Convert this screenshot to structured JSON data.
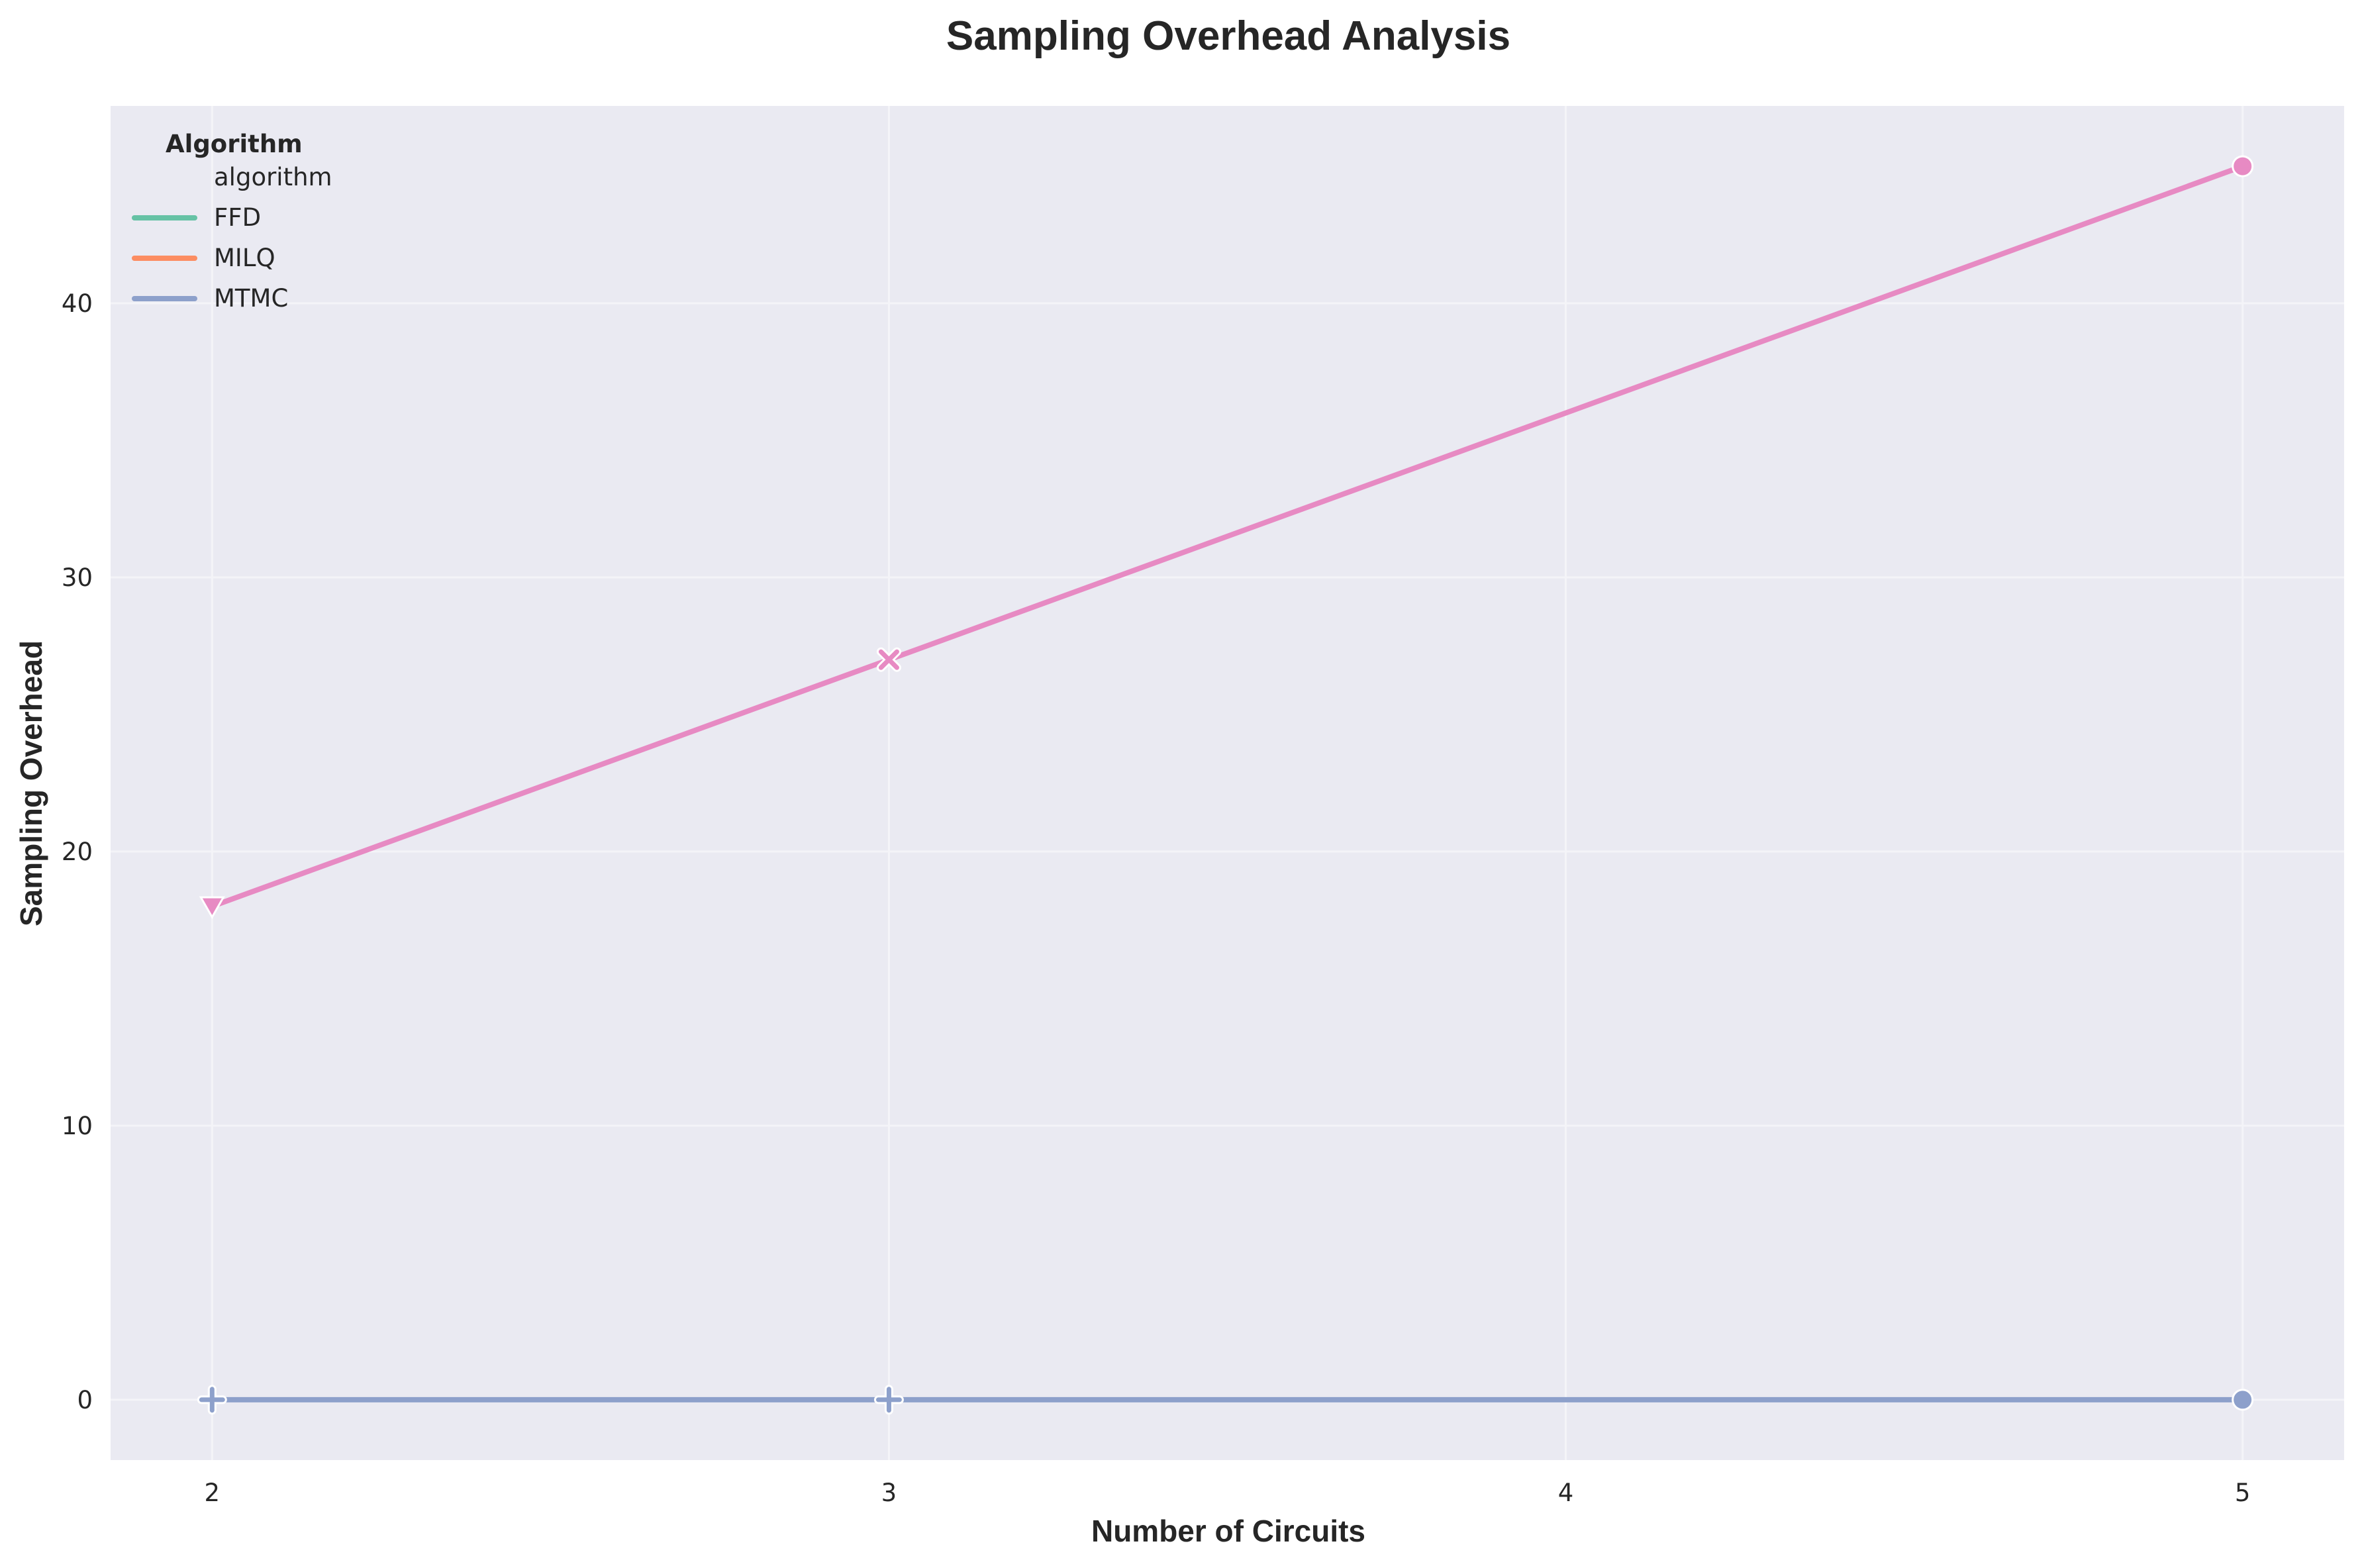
{
  "chart_data": {
    "type": "line",
    "title": "Sampling Overhead Analysis",
    "xlabel": "Number of Circuits",
    "ylabel": "Sampling Overhead",
    "x": [
      2,
      3,
      5
    ],
    "xticks": [
      "2",
      "3",
      "4",
      "5"
    ],
    "yticks": [
      "0",
      "10",
      "20",
      "30",
      "40"
    ],
    "xlim": [
      1.85,
      5.15
    ],
    "ylim": [
      -2.2,
      47.2
    ],
    "grid": true,
    "legend": {
      "title": "Algorithm",
      "placement": "top-left",
      "entries": [
        {
          "label": "algorithm",
          "color": ""
        },
        {
          "label": "FFD",
          "color": "#66c2a5"
        },
        {
          "label": "MILQ",
          "color": "#fc8d62"
        },
        {
          "label": "MTMC",
          "color": "#8da0cb"
        }
      ]
    },
    "series": [
      {
        "color": "#e78ac3",
        "values": [
          18,
          27,
          45
        ],
        "markers": [
          "triangle-down",
          "x",
          "circle"
        ]
      },
      {
        "color": "#8da0cb",
        "values": [
          0,
          0,
          0
        ],
        "markers": [
          "plus",
          "plus",
          "circle"
        ]
      }
    ],
    "colors": {
      "plot_background": "#eaeaf2",
      "grid": "#f4f4f8",
      "text": "#262626"
    }
  }
}
